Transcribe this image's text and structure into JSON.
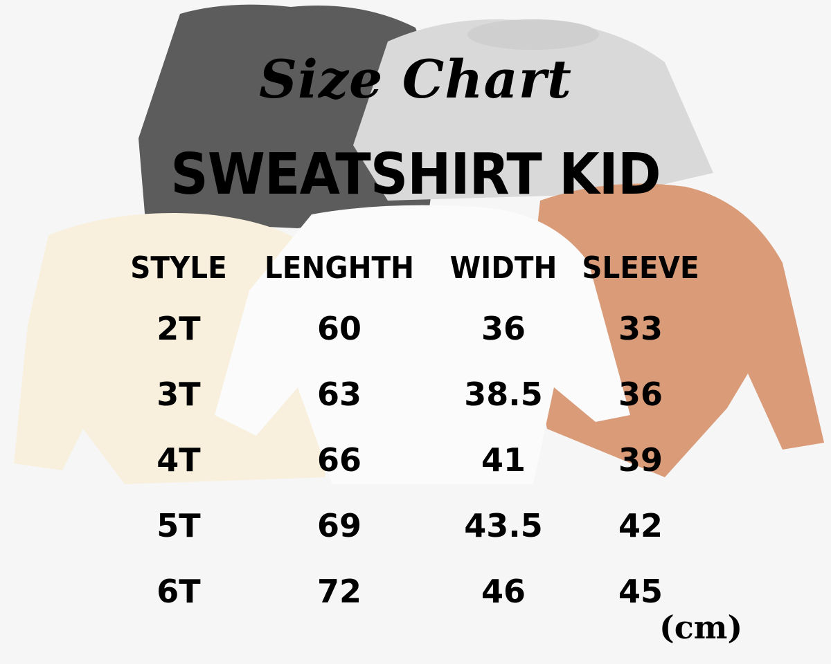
{
  "script_title": "Size Chart",
  "main_title": "SWEATSHIRT KID",
  "table": {
    "headers": [
      "STYLE",
      "LENGHTH",
      "WIDTH",
      "SLEEVE"
    ],
    "rows": [
      [
        "2T",
        "60",
        "36",
        "33"
      ],
      [
        "3T",
        "63",
        "38.5",
        "36"
      ],
      [
        "4T",
        "66",
        "41",
        "39"
      ],
      [
        "5T",
        "69",
        "43.5",
        "42"
      ],
      [
        "6T",
        "72",
        "46",
        "45"
      ]
    ]
  },
  "unit": "(cm)",
  "shirt_colors": {
    "dark_gray": "#5c5c5c",
    "light_gray": "#d9d9d9",
    "cream": "#f8f0dd",
    "white": "#fbfbfb",
    "orange": "#d99b78"
  }
}
